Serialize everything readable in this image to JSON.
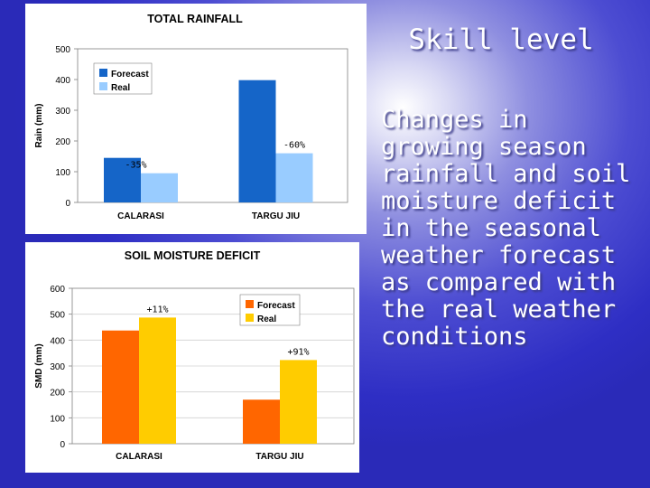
{
  "slide": {
    "title": "Skill level",
    "body": "Changes in growing season rainfall and soil moisture deficit in the seasonal weather forecast as compared with the real weather conditions"
  },
  "colors": {
    "rain_forecast": "#1565c8",
    "rain_real": "#99ccff",
    "smd_forecast": "#ff6600",
    "smd_real": "#ffcc00"
  },
  "chart_data": [
    {
      "type": "bar",
      "title": "TOTAL RAINFALL",
      "xlabel": "",
      "ylabel": "Rain (mm)",
      "categories": [
        "CALARASI",
        "TARGU JIU"
      ],
      "series": [
        {
          "name": "Forecast",
          "values": [
            145,
            398
          ]
        },
        {
          "name": "Real",
          "values": [
            95,
            160
          ]
        }
      ],
      "ylim": [
        0,
        500
      ],
      "yticks": [
        "0",
        "100",
        "200",
        "300",
        "400",
        "500"
      ],
      "annotations": [
        "-35%",
        "-60%"
      ],
      "legend": "top-left",
      "grid": false
    },
    {
      "type": "bar",
      "title": "SOIL MOISTURE DEFICIT",
      "xlabel": "",
      "ylabel": "SMD (mm)",
      "categories": [
        "CALARASI",
        "TARGU JIU"
      ],
      "series": [
        {
          "name": "Forecast",
          "values": [
            437,
            170
          ]
        },
        {
          "name": "Real",
          "values": [
            487,
            323
          ]
        }
      ],
      "ylim": [
        0,
        600
      ],
      "yticks": [
        "0",
        "100",
        "200",
        "300",
        "400",
        "500",
        "600"
      ],
      "annotations": [
        "+11%",
        "+91%"
      ],
      "legend": "top-right",
      "grid": true
    }
  ]
}
